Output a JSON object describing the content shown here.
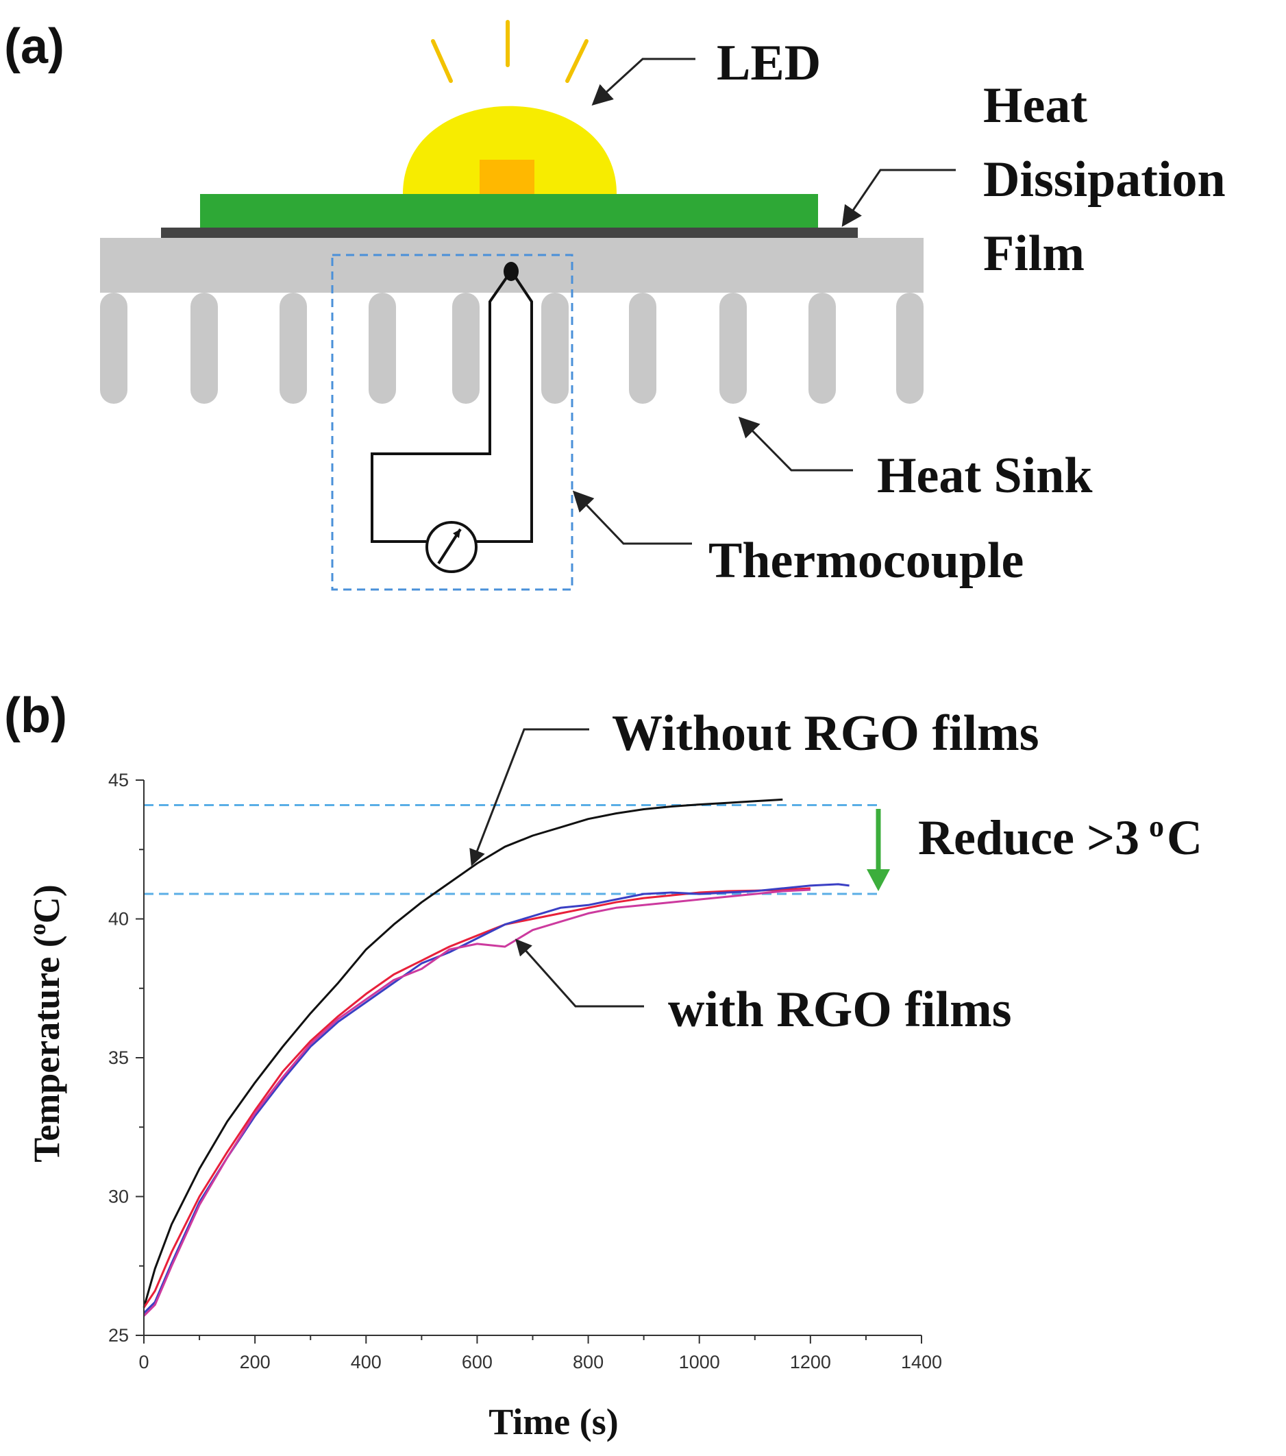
{
  "panel_a": {
    "label": "(a)",
    "callouts": {
      "led": "LED",
      "film_line1": "Heat",
      "film_line2": "Dissipation",
      "film_line3": "Film",
      "heat_sink": "Heat Sink",
      "thermocouple": "Thermocouple"
    },
    "colors": {
      "led_dome": "#f7ec00",
      "led_chip": "#ffb800",
      "led_rays": "#f2c200",
      "film": "#2ea836",
      "substrate": "#444444",
      "heat_sink": "#c8c8c8",
      "thermocouple_box": "#4a90d9"
    },
    "icons": [
      "sun-ray-icon",
      "gauge-meter-icon"
    ]
  },
  "panel_b": {
    "label": "(b)",
    "annotation_without": "Without RGO films",
    "annotation_with": "with RGO films",
    "reduce_label": "Reduce >3",
    "reduce_sup": "o",
    "reduce_unit": "C",
    "ylabel_main": "Temperature (",
    "ylabel_sup": "o",
    "ylabel_unit": "C)",
    "reference_lines": [
      44.1,
      40.9
    ],
    "reference_color": "#5aaee6",
    "arrow_color": "#3cae3c"
  },
  "chart_data": {
    "type": "line",
    "xlabel": "Time (s)",
    "ylabel": "Temperature (oC)",
    "xlim": [
      0,
      1400
    ],
    "ylim": [
      25,
      45
    ],
    "xticks": [
      0,
      200,
      400,
      600,
      800,
      1000,
      1200,
      1400
    ],
    "yticks": [
      25,
      30,
      35,
      40,
      45
    ],
    "grid": false,
    "series": [
      {
        "color": "#111111",
        "x": [
          0,
          20,
          50,
          100,
          150,
          200,
          250,
          300,
          350,
          400,
          450,
          500,
          550,
          600,
          650,
          700,
          750,
          800,
          850,
          900,
          950,
          1000,
          1050,
          1100,
          1150
        ],
        "y": [
          26.0,
          27.4,
          29.0,
          31.0,
          32.7,
          34.1,
          35.4,
          36.6,
          37.7,
          38.9,
          39.8,
          40.6,
          41.3,
          42.0,
          42.6,
          43.0,
          43.3,
          43.6,
          43.8,
          43.95,
          44.05,
          44.12,
          44.18,
          44.24,
          44.3
        ]
      },
      {
        "color": "#e8203a",
        "x": [
          0,
          20,
          50,
          100,
          150,
          200,
          250,
          300,
          350,
          400,
          450,
          500,
          550,
          600,
          650,
          700,
          750,
          800,
          850,
          900,
          950,
          1000,
          1050,
          1100,
          1150,
          1200
        ],
        "y": [
          26.0,
          26.6,
          28.0,
          30.0,
          31.6,
          33.1,
          34.5,
          35.6,
          36.5,
          37.3,
          38.0,
          38.5,
          39.0,
          39.4,
          39.8,
          40.0,
          40.2,
          40.4,
          40.6,
          40.75,
          40.85,
          40.95,
          41.0,
          41.02,
          41.05,
          41.1
        ]
      },
      {
        "color": "#3a3fc4",
        "x": [
          0,
          20,
          50,
          100,
          150,
          200,
          250,
          300,
          350,
          400,
          450,
          500,
          550,
          600,
          650,
          700,
          750,
          800,
          850,
          900,
          950,
          1000,
          1050,
          1100,
          1150,
          1200,
          1250,
          1270
        ],
        "y": [
          25.8,
          26.2,
          27.6,
          29.8,
          31.4,
          32.9,
          34.2,
          35.4,
          36.3,
          37.0,
          37.7,
          38.4,
          38.8,
          39.3,
          39.8,
          40.1,
          40.4,
          40.5,
          40.7,
          40.9,
          40.95,
          40.9,
          40.95,
          41.0,
          41.1,
          41.2,
          41.25,
          41.2
        ]
      },
      {
        "color": "#cc3a9e",
        "x": [
          0,
          20,
          50,
          100,
          150,
          200,
          250,
          300,
          350,
          400,
          450,
          500,
          550,
          600,
          650,
          700,
          750,
          800,
          850,
          900,
          950,
          1000,
          1050,
          1100,
          1150,
          1200
        ],
        "y": [
          25.7,
          26.1,
          27.5,
          29.7,
          31.4,
          33.0,
          34.3,
          35.5,
          36.4,
          37.1,
          37.8,
          38.2,
          38.9,
          39.1,
          39.0,
          39.6,
          39.9,
          40.2,
          40.4,
          40.5,
          40.6,
          40.7,
          40.8,
          40.9,
          41.0,
          41.05
        ]
      }
    ]
  }
}
